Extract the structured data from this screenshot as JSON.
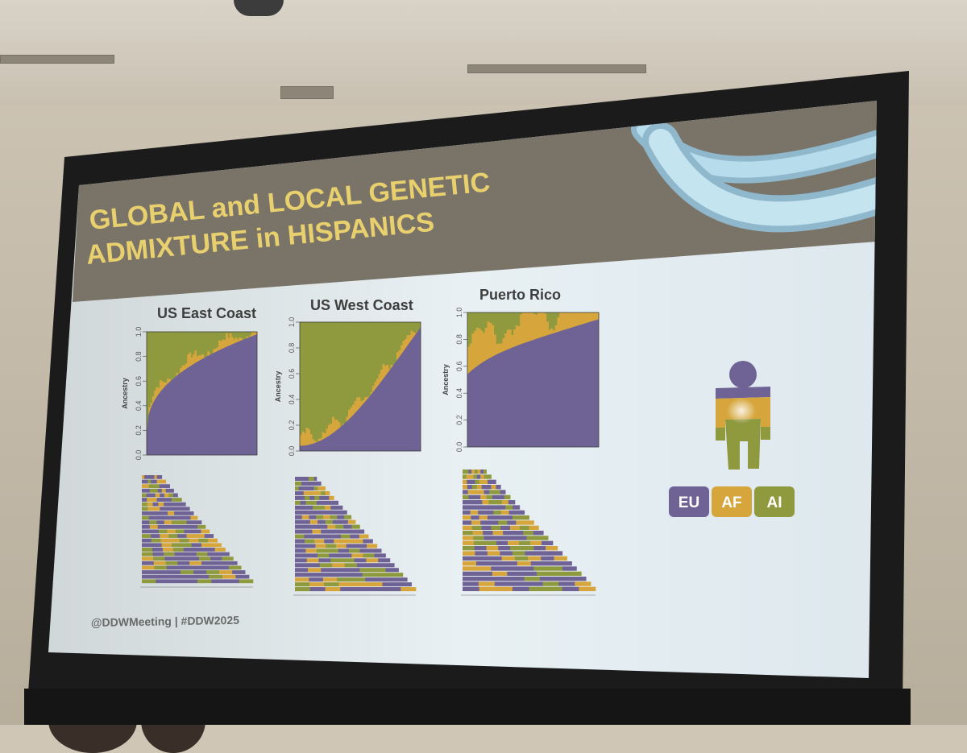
{
  "slide": {
    "title_line1": "GLOBAL and LOCAL GENETIC",
    "title_line2": "ADMIXTURE in HISPANICS",
    "footer": "@DDWMeeting | #DDW2025"
  },
  "panels": [
    {
      "title": "US East Coast"
    },
    {
      "title": "US West Coast"
    },
    {
      "title": "Puerto Rico"
    }
  ],
  "chart_data": {
    "type": "area",
    "ylabel": "Ancestry",
    "yticks": [
      "0.0",
      "0.2",
      "0.4",
      "0.6",
      "0.8",
      "1.0"
    ],
    "ylim": [
      0,
      1
    ],
    "series_colors": {
      "EU": "#6f6396",
      "AF": "#d6a63c",
      "AI": "#8f9a3e"
    },
    "legend": [
      {
        "label": "EU",
        "color": "#6f6396"
      },
      {
        "label": "AF",
        "color": "#d6a63c"
      },
      {
        "label": "AI",
        "color": "#8f9a3e"
      }
    ],
    "legend_placement": "right"
  },
  "colors": {
    "title_band": "#7a7368",
    "title_text": "#e8d06e",
    "slide_background": "#e3edf3",
    "ribbon": "#a8d2e3"
  },
  "icons": {
    "person": "person-silhouette-icon"
  }
}
